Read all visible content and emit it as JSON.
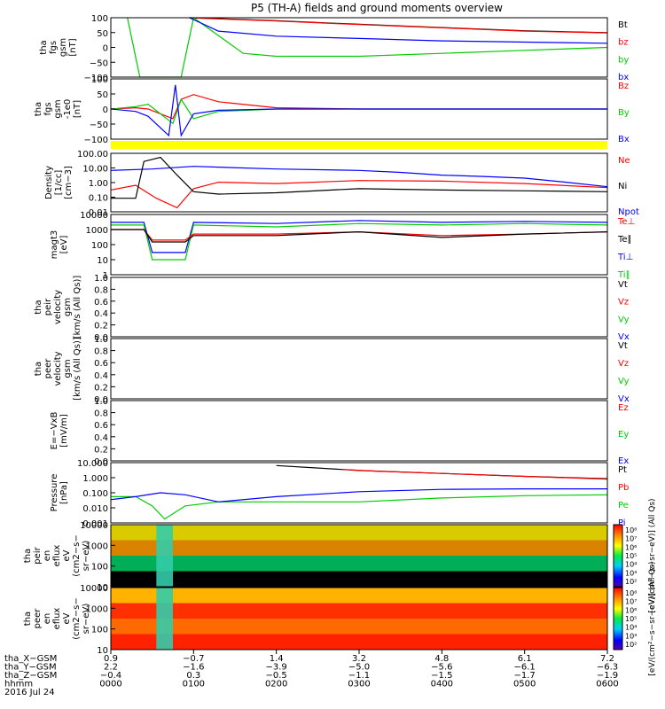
{
  "title": "P5 (TH-A) fields and ground moments overview",
  "chart_data": [
    {
      "type": "line",
      "panel": "fgs-gsm",
      "ylabel_lines": [
        "tha",
        "fgs",
        "gsm",
        "[nT]"
      ],
      "ylim": [
        -100,
        100
      ],
      "yticks": [
        "100",
        "50",
        "0",
        "−50",
        "−100"
      ],
      "legend": [
        {
          "name": "Bt",
          "color": "#000000"
        },
        {
          "name": "bz",
          "color": "#ff0000"
        },
        {
          "name": "by",
          "color": "#00cc00"
        },
        {
          "name": "bx",
          "color": "#0000ff"
        }
      ],
      "series": [
        {
          "name": "Bt",
          "color": "#000000",
          "x": [
            0.95,
            1.2,
            2,
            3,
            4,
            5,
            6
          ],
          "y": [
            100,
            98,
            90,
            78,
            67,
            56,
            50
          ]
        },
        {
          "name": "bz",
          "color": "#ff0000",
          "x": [
            0.95,
            1.2,
            2,
            3,
            4,
            5,
            6
          ],
          "y": [
            100,
            97,
            89,
            77,
            66,
            55,
            49
          ]
        },
        {
          "name": "by",
          "color": "#00cc00",
          "x": [
            0.2,
            0.35,
            0.85,
            1.0,
            1.3,
            1.6,
            2,
            3,
            4,
            5,
            6
          ],
          "y": [
            100,
            -100,
            -100,
            100,
            40,
            -20,
            -30,
            -30,
            -20,
            -10,
            0
          ]
        },
        {
          "name": "bx",
          "color": "#0000ff",
          "x": [
            0.95,
            1.3,
            2,
            3,
            4,
            5,
            6
          ],
          "y": [
            100,
            55,
            38,
            30,
            22,
            18,
            14
          ]
        }
      ]
    },
    {
      "type": "line",
      "panel": "fgs-gsm-detrended",
      "ylabel_lines": [
        "tha",
        "fgs",
        "gsm",
        "-1e0",
        "[nT]"
      ],
      "ylim": [
        -125,
        125
      ],
      "yticks": [
        "100",
        "50",
        "0",
        "−50",
        "−100"
      ],
      "legend": [
        {
          "name": "Bz",
          "color": "#ff0000"
        },
        {
          "name": "By",
          "color": "#00cc00"
        },
        {
          "name": "Bx",
          "color": "#0000ff"
        }
      ],
      "series": [
        {
          "name": "Bz",
          "color": "#ff0000",
          "x": [
            0,
            0.3,
            0.45,
            0.75,
            0.85,
            1.0,
            1.3,
            2,
            3,
            6
          ],
          "y": [
            0,
            5,
            0,
            -40,
            40,
            60,
            30,
            5,
            0,
            0
          ]
        },
        {
          "name": "By",
          "color": "#00cc00",
          "x": [
            0,
            0.3,
            0.45,
            0.75,
            0.85,
            1.0,
            1.3,
            2,
            3,
            6
          ],
          "y": [
            0,
            10,
            20,
            -60,
            40,
            -40,
            -10,
            0,
            0,
            0
          ]
        },
        {
          "name": "Bx",
          "color": "#0000ff",
          "x": [
            0,
            0.3,
            0.45,
            0.7,
            0.78,
            0.85,
            1.0,
            1.3,
            2,
            3,
            6
          ],
          "y": [
            0,
            -10,
            -30,
            -110,
            100,
            -110,
            -20,
            -5,
            0,
            0,
            0
          ]
        }
      ]
    },
    {
      "type": "line",
      "panel": "density",
      "log": true,
      "ylabel_lines": [
        "Density",
        "[1/cc]",
        "[cm−3]"
      ],
      "ylim": [
        0.01,
        200
      ],
      "yticks": [
        "100.00",
        "10.00",
        "1.00",
        "0.10",
        "0.01"
      ],
      "legend": [
        {
          "name": "Ne",
          "color": "#ff0000"
        },
        {
          "name": "Ni",
          "color": "#000000"
        },
        {
          "name": "Npot",
          "color": "#0000ff"
        }
      ],
      "series": [
        {
          "name": "Npot",
          "color": "#0000ff",
          "x": [
            0,
            0.5,
            1.0,
            2,
            3,
            3.5,
            4,
            4.5,
            5,
            5.5,
            6
          ],
          "y": [
            11,
            14,
            22,
            14,
            11,
            8,
            5,
            4,
            3,
            1.5,
            0.7
          ]
        },
        {
          "name": "Ne",
          "color": "#ff0000",
          "x": [
            0,
            0.3,
            0.55,
            0.8,
            1.0,
            1.3,
            2,
            3,
            4,
            5,
            6
          ],
          "y": [
            0.4,
            0.9,
            0.1,
            0.02,
            0.5,
            1.5,
            1.2,
            2,
            1.8,
            1.2,
            0.6
          ]
        },
        {
          "name": "Ni",
          "color": "#000000",
          "x": [
            0,
            0.3,
            0.4,
            0.6,
            0.8,
            1.0,
            1.3,
            2,
            3,
            4,
            5,
            6
          ],
          "y": [
            0.1,
            0.1,
            50,
            100,
            5,
            0.3,
            0.2,
            0.25,
            0.5,
            0.4,
            0.35,
            0.3
          ]
        }
      ]
    },
    {
      "type": "line",
      "panel": "temperature",
      "log": true,
      "ylabel_lines": [
        "magt3",
        "[eV]"
      ],
      "ylim": [
        1,
        10000
      ],
      "yticks": [
        "10000",
        "1000",
        "100",
        "10",
        "1"
      ],
      "legend": [
        {
          "name": "Te⊥",
          "color": "#ff0000"
        },
        {
          "name": "Te∥",
          "color": "#000000"
        },
        {
          "name": "Ti⊥",
          "color": "#0000ff"
        },
        {
          "name": "Ti∥",
          "color": "#00cc00"
        }
      ],
      "series": [
        {
          "name": "Ti⊥",
          "color": "#0000ff",
          "x": [
            0,
            0.4,
            0.5,
            0.9,
            1.0,
            2,
            3,
            4,
            5,
            6
          ],
          "y": [
            3000,
            3000,
            30,
            30,
            3000,
            2500,
            4000,
            3000,
            3500,
            3000
          ]
        },
        {
          "name": "Ti∥",
          "color": "#00cc00",
          "x": [
            0,
            0.4,
            0.5,
            0.9,
            1.0,
            2,
            3,
            4,
            5,
            6
          ],
          "y": [
            2000,
            2000,
            10,
            10,
            2000,
            1500,
            2500,
            2000,
            2500,
            2000
          ]
        },
        {
          "name": "Te⊥",
          "color": "#ff0000",
          "x": [
            0,
            0.4,
            0.5,
            0.9,
            1.0,
            2,
            3,
            4,
            5,
            6
          ],
          "y": [
            1000,
            1000,
            200,
            200,
            500,
            500,
            700,
            400,
            500,
            700
          ]
        },
        {
          "name": "Te∥",
          "color": "#000000",
          "x": [
            0,
            0.4,
            0.5,
            0.9,
            1.0,
            2,
            3,
            4,
            5,
            6
          ],
          "y": [
            1000,
            1000,
            150,
            150,
            400,
            400,
            700,
            300,
            500,
            700
          ]
        }
      ]
    },
    {
      "type": "line",
      "panel": "peir-velocity",
      "ylabel_lines": [
        "tha",
        "peir",
        "velocity",
        "gsm",
        "[km/s (All Qs)]"
      ],
      "ylim": [
        0,
        1
      ],
      "yticks": [
        "1.0",
        "0.8",
        "0.6",
        "0.4",
        "0.2",
        "0.0"
      ],
      "legend": [
        {
          "name": "Vt",
          "color": "#000000"
        },
        {
          "name": "Vz",
          "color": "#ff0000"
        },
        {
          "name": "Vy",
          "color": "#00cc00"
        },
        {
          "name": "Vx",
          "color": "#0000ff"
        }
      ],
      "series": []
    },
    {
      "type": "line",
      "panel": "peer-velocity",
      "ylabel_lines": [
        "tha",
        "peer",
        "velocity",
        "gsm",
        "[km/s (All Qs)]"
      ],
      "ylim": [
        0,
        1
      ],
      "yticks": [
        "1.0",
        "0.8",
        "0.6",
        "0.4",
        "0.2",
        "0.0"
      ],
      "legend": [
        {
          "name": "Vt",
          "color": "#000000"
        },
        {
          "name": "Vz",
          "color": "#ff0000"
        },
        {
          "name": "Vy",
          "color": "#00cc00"
        },
        {
          "name": "Vx",
          "color": "#0000ff"
        }
      ],
      "series": []
    },
    {
      "type": "line",
      "panel": "efield",
      "ylabel_lines": [
        "E=−VxB",
        "[mV/m]"
      ],
      "ylim": [
        0,
        1
      ],
      "yticks": [
        "1.0",
        "0.8",
        "0.6",
        "0.4",
        "0.2",
        "0.0"
      ],
      "legend": [
        {
          "name": "Ez",
          "color": "#ff0000"
        },
        {
          "name": "Ey",
          "color": "#00cc00"
        },
        {
          "name": "Ex",
          "color": "#0000ff"
        }
      ],
      "series": []
    },
    {
      "type": "line",
      "panel": "pressure",
      "log": true,
      "ylabel_lines": [
        "Pressure",
        "[nPa]"
      ],
      "ylim": [
        0.0005,
        20
      ],
      "yticks": [
        "10.000",
        "1.000",
        "0.100",
        "0.010",
        "0.001"
      ],
      "legend": [
        {
          "name": "Pt",
          "color": "#000000"
        },
        {
          "name": "Pb",
          "color": "#ff0000"
        },
        {
          "name": "Pe",
          "color": "#00cc00"
        },
        {
          "name": "Pi",
          "color": "#0000ff"
        }
      ],
      "series": [
        {
          "name": "Pt",
          "color": "#000000",
          "x": [
            2,
            3,
            4,
            5,
            6
          ],
          "y": [
            12,
            5,
            3,
            1.8,
            1.2
          ]
        },
        {
          "name": "Pb",
          "color": "#ff0000",
          "x": [
            2.8,
            3.2,
            4,
            5,
            6
          ],
          "y": [
            6,
            4.5,
            3,
            1.8,
            1.1
          ]
        },
        {
          "name": "Pe",
          "color": "#00cc00",
          "x": [
            0,
            0.3,
            0.5,
            0.65,
            0.9,
            1.3,
            2,
            3,
            4,
            5,
            6
          ],
          "y": [
            0.05,
            0.05,
            0.01,
            0.001,
            0.01,
            0.02,
            0.02,
            0.02,
            0.04,
            0.06,
            0.07
          ]
        },
        {
          "name": "Pi",
          "color": "#0000ff",
          "x": [
            0,
            0.3,
            0.6,
            0.9,
            1.3,
            2,
            3,
            4,
            5,
            6
          ],
          "y": [
            0.03,
            0.05,
            0.1,
            0.07,
            0.02,
            0.05,
            0.12,
            0.18,
            0.2,
            0.2
          ]
        }
      ]
    },
    {
      "type": "heatmap",
      "panel": "peir-en-eflux",
      "log": true,
      "ylabel_lines": [
        "tha",
        "peir",
        "en",
        "eflux",
        "eV",
        "(cm2−s−",
        "sr−eV)"
      ],
      "ylim": [
        5,
        30000
      ],
      "yticks": [
        "10000",
        "1000",
        "100",
        "10"
      ]
    },
    {
      "type": "heatmap",
      "panel": "peer-en-eflux",
      "log": true,
      "ylabel_lines": [
        "tha",
        "peer",
        "en",
        "eflux",
        "eV",
        "(cm2−s−",
        "sr−eV)"
      ],
      "ylim": [
        5,
        30000
      ],
      "yticks": [
        "10000",
        "1000",
        "100",
        "10"
      ]
    }
  ],
  "colorbars": [
    {
      "label": "[eV/(cm²−s−sr−eV)] (All Qs)",
      "ticks": [
        "10⁸",
        "10⁷",
        "10⁶",
        "10⁵",
        "10⁴",
        "10³",
        "10²"
      ]
    },
    {
      "label": "[eV/(cm²−s−sr−eV)] (All Qs)",
      "ticks": [
        "10⁸",
        "10⁷",
        "10⁶",
        "10⁵",
        "10⁴",
        "10³",
        "10²"
      ]
    }
  ],
  "xaxis": {
    "range_hours": [
      0,
      6
    ],
    "rows": [
      {
        "label": "tha_X−GSM",
        "values": [
          "0.9",
          "−0.7",
          "1.4",
          "3.2",
          "4.8",
          "6.1",
          "7.2"
        ]
      },
      {
        "label": "tha_Y−GSM",
        "values": [
          "2.2",
          "−1.6",
          "−3.9",
          "−5.0",
          "−5.6",
          "−6.1",
          "−6.3"
        ]
      },
      {
        "label": "tha_Z−GSM",
        "values": [
          "−0.4",
          "0.3",
          "−0.5",
          "−1.1",
          "−1.5",
          "−1.7",
          "−1.9"
        ]
      },
      {
        "label": "hhmm",
        "values": [
          "0000",
          "0100",
          "0200",
          "0300",
          "0400",
          "0500",
          "0600"
        ]
      }
    ],
    "date": "2016 Jul 24"
  }
}
